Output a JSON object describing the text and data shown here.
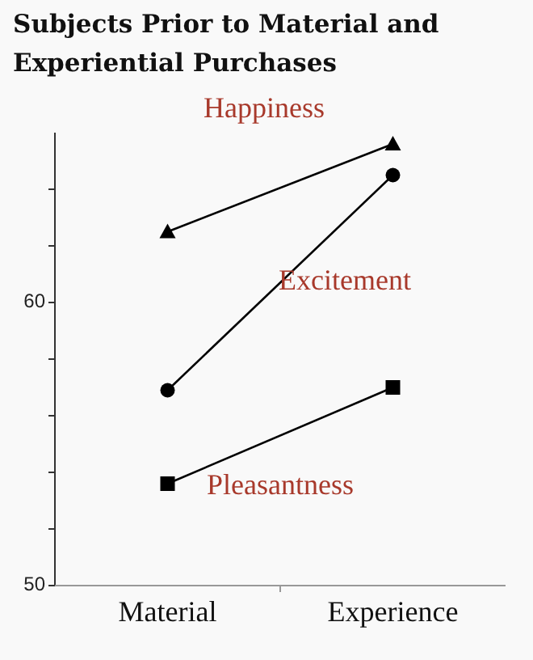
{
  "chart_data": {
    "type": "line",
    "title": "Subjects Prior to Material and Experiential Purchases",
    "categories": [
      "Material",
      "Experience"
    ],
    "series": [
      {
        "name": "Happiness",
        "color": "#000000",
        "marker": "triangle",
        "values": [
          62.5,
          65.6
        ]
      },
      {
        "name": "Excitement",
        "color": "#000000",
        "marker": "circle",
        "values": [
          56.9,
          64.5
        ]
      },
      {
        "name": "Pleasantness",
        "color": "#000000",
        "marker": "square",
        "values": [
          53.6,
          57.0
        ]
      }
    ],
    "ylim": [
      50,
      66
    ],
    "yticks": [
      50,
      {
        "value": 52,
        "label": null
      },
      {
        "value": 54,
        "label": null
      },
      {
        "value": 56,
        "label": null
      },
      {
        "value": 58,
        "label": null
      },
      60,
      {
        "value": 62,
        "label": null
      },
      {
        "value": 64,
        "label": null
      }
    ],
    "grid": false,
    "legend": false,
    "line_style": "solid"
  }
}
